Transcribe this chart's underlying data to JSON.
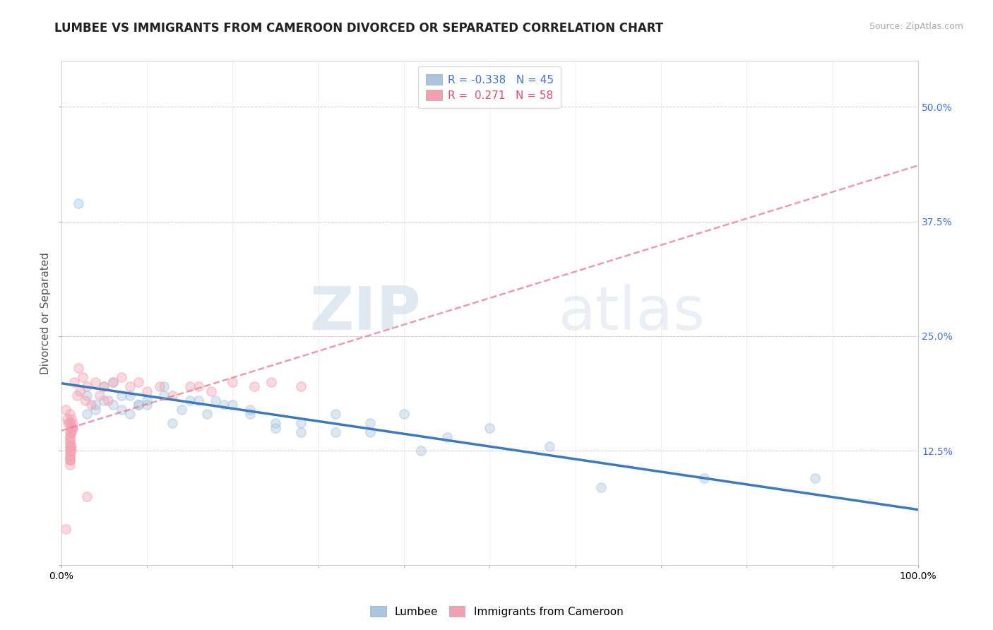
{
  "title": "LUMBEE VS IMMIGRANTS FROM CAMEROON DIVORCED OR SEPARATED CORRELATION CHART",
  "source_text": "Source: ZipAtlas.com",
  "ylabel": "Divorced or Separated",
  "xlim": [
    0.0,
    1.0
  ],
  "ylim": [
    0.0,
    0.55
  ],
  "yticks": [
    0.0,
    0.125,
    0.25,
    0.375,
    0.5
  ],
  "ytick_labels": [
    "",
    "12.5%",
    "25.0%",
    "37.5%",
    "50.0%"
  ],
  "xtick_labels": [
    "0.0%",
    "100.0%"
  ],
  "legend_r_lumbee": "-0.338",
  "legend_n_lumbee": "45",
  "legend_r_cameroon": "0.271",
  "legend_n_cameroon": "58",
  "lumbee_color": "#a8c4e0",
  "cameroon_color": "#f4a0b0",
  "lumbee_line_color": "#3a7abf",
  "cameroon_line_color": "#e87a90",
  "watermark_zip": "ZIP",
  "watermark_atlas": "atlas",
  "background_color": "#ffffff",
  "lumbee_scatter_x": [
    0.02,
    0.03,
    0.04,
    0.03,
    0.05,
    0.04,
    0.06,
    0.05,
    0.07,
    0.06,
    0.08,
    0.07,
    0.09,
    0.08,
    0.1,
    0.09,
    0.12,
    0.1,
    0.14,
    0.12,
    0.16,
    0.13,
    0.18,
    0.15,
    0.2,
    0.17,
    0.22,
    0.19,
    0.25,
    0.22,
    0.28,
    0.25,
    0.32,
    0.28,
    0.36,
    0.32,
    0.4,
    0.36,
    0.45,
    0.42,
    0.5,
    0.57,
    0.63,
    0.75,
    0.88
  ],
  "lumbee_scatter_y": [
    0.395,
    0.185,
    0.175,
    0.165,
    0.195,
    0.17,
    0.2,
    0.18,
    0.185,
    0.175,
    0.185,
    0.17,
    0.175,
    0.165,
    0.18,
    0.175,
    0.195,
    0.175,
    0.17,
    0.185,
    0.18,
    0.155,
    0.18,
    0.18,
    0.175,
    0.165,
    0.17,
    0.175,
    0.15,
    0.165,
    0.145,
    0.155,
    0.165,
    0.155,
    0.155,
    0.145,
    0.165,
    0.145,
    0.14,
    0.125,
    0.15,
    0.13,
    0.085,
    0.095,
    0.095
  ],
  "cameroon_scatter_x": [
    0.005,
    0.007,
    0.008,
    0.01,
    0.01,
    0.012,
    0.01,
    0.013,
    0.01,
    0.012,
    0.01,
    0.011,
    0.013,
    0.01,
    0.013,
    0.01,
    0.012,
    0.01,
    0.01,
    0.012,
    0.01,
    0.01,
    0.01,
    0.01,
    0.01,
    0.01,
    0.01,
    0.01,
    0.012,
    0.01,
    0.015,
    0.018,
    0.02,
    0.022,
    0.025,
    0.028,
    0.03,
    0.035,
    0.04,
    0.045,
    0.05,
    0.055,
    0.06,
    0.07,
    0.08,
    0.09,
    0.1,
    0.115,
    0.13,
    0.15,
    0.16,
    0.175,
    0.2,
    0.225,
    0.245,
    0.28,
    0.03,
    0.005
  ],
  "cameroon_scatter_y": [
    0.17,
    0.16,
    0.155,
    0.165,
    0.155,
    0.16,
    0.145,
    0.155,
    0.14,
    0.15,
    0.135,
    0.145,
    0.15,
    0.155,
    0.15,
    0.13,
    0.145,
    0.12,
    0.14,
    0.13,
    0.125,
    0.135,
    0.115,
    0.125,
    0.12,
    0.11,
    0.13,
    0.115,
    0.125,
    0.115,
    0.2,
    0.185,
    0.215,
    0.19,
    0.205,
    0.18,
    0.195,
    0.175,
    0.2,
    0.185,
    0.195,
    0.18,
    0.2,
    0.205,
    0.195,
    0.2,
    0.19,
    0.195,
    0.185,
    0.195,
    0.195,
    0.19,
    0.2,
    0.195,
    0.2,
    0.195,
    0.075,
    0.04
  ],
  "grid_color": "#cccccc",
  "title_fontsize": 12,
  "axis_label_fontsize": 11,
  "tick_fontsize": 10,
  "scatter_size": 90,
  "scatter_alpha": 0.4
}
